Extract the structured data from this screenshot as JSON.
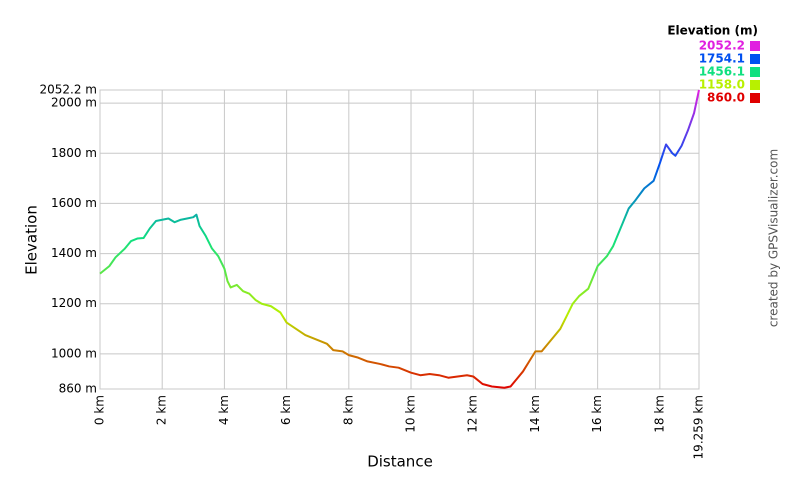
{
  "chart_data": {
    "type": "line",
    "xlabel": "Distance",
    "ylabel": "Elevation",
    "credit": "created by GPSVisualizer.com",
    "legend_title": "Elevation (m)",
    "colorscale": [
      {
        "value": 2052.2,
        "label": "2052.2",
        "color": "#e020e0"
      },
      {
        "value": 1754.1,
        "label": "1754.1",
        "color": "#0050f0"
      },
      {
        "value": 1456.1,
        "label": "1456.1",
        "color": "#10e080"
      },
      {
        "value": 1158,
        "label": "1158.0",
        "color": "#b8f000"
      },
      {
        "value": 860,
        "label": "860.0",
        "color": "#e00000"
      }
    ],
    "xlim": [
      0,
      19.259
    ],
    "ylim": [
      860,
      2052.2
    ],
    "xticks": [
      {
        "value": 0,
        "label": "0 km"
      },
      {
        "value": 2,
        "label": "2 km"
      },
      {
        "value": 4,
        "label": "4 km"
      },
      {
        "value": 6,
        "label": "6 km"
      },
      {
        "value": 8,
        "label": "8 km"
      },
      {
        "value": 10,
        "label": "10 km"
      },
      {
        "value": 12,
        "label": "12 km"
      },
      {
        "value": 14,
        "label": "14 km"
      },
      {
        "value": 16,
        "label": "16 km"
      },
      {
        "value": 18,
        "label": "18 km"
      },
      {
        "value": 19.259,
        "label": "19.259 km"
      }
    ],
    "yticks": [
      {
        "value": 860,
        "label": "860 m"
      },
      {
        "value": 1000,
        "label": "1000 m"
      },
      {
        "value": 1200,
        "label": "1200 m"
      },
      {
        "value": 1400,
        "label": "1400 m"
      },
      {
        "value": 1600,
        "label": "1600 m"
      },
      {
        "value": 1800,
        "label": "1800 m"
      },
      {
        "value": 2000,
        "label": "2000 m"
      },
      {
        "value": 2052.2,
        "label": "2052.2 m"
      }
    ],
    "grid": true,
    "x": [
      0,
      0.3,
      0.5,
      0.8,
      1.0,
      1.2,
      1.4,
      1.6,
      1.8,
      2.0,
      2.2,
      2.4,
      2.6,
      2.8,
      3.0,
      3.1,
      3.2,
      3.4,
      3.6,
      3.8,
      4.0,
      4.1,
      4.2,
      4.4,
      4.6,
      4.8,
      5.0,
      5.2,
      5.5,
      5.8,
      6.0,
      6.3,
      6.6,
      7.0,
      7.3,
      7.5,
      7.8,
      8.0,
      8.3,
      8.6,
      9.0,
      9.3,
      9.6,
      10.0,
      10.3,
      10.6,
      10.9,
      11.2,
      11.5,
      11.8,
      12.0,
      12.3,
      12.6,
      13.0,
      13.2,
      13.4,
      13.6,
      13.8,
      14.0,
      14.2,
      14.4,
      14.6,
      14.8,
      15.0,
      15.2,
      15.4,
      15.7,
      16.0,
      16.3,
      16.5,
      16.8,
      17.0,
      17.2,
      17.5,
      17.8,
      18.0,
      18.2,
      18.4,
      18.5,
      18.7,
      18.9,
      19.1,
      19.259
    ],
    "values": [
      1320,
      1350,
      1385,
      1420,
      1450,
      1460,
      1462,
      1500,
      1530,
      1535,
      1540,
      1525,
      1535,
      1540,
      1545,
      1555,
      1510,
      1470,
      1420,
      1390,
      1340,
      1290,
      1265,
      1275,
      1250,
      1240,
      1215,
      1200,
      1190,
      1165,
      1125,
      1100,
      1075,
      1055,
      1040,
      1015,
      1010,
      995,
      985,
      970,
      960,
      950,
      945,
      925,
      915,
      920,
      915,
      905,
      910,
      915,
      910,
      880,
      870,
      865,
      870,
      900,
      930,
      970,
      1010,
      1010,
      1040,
      1070,
      1100,
      1150,
      1200,
      1230,
      1260,
      1350,
      1390,
      1430,
      1520,
      1580,
      1610,
      1660,
      1690,
      1760,
      1835,
      1800,
      1790,
      1830,
      1890,
      1960,
      2052.2
    ]
  }
}
